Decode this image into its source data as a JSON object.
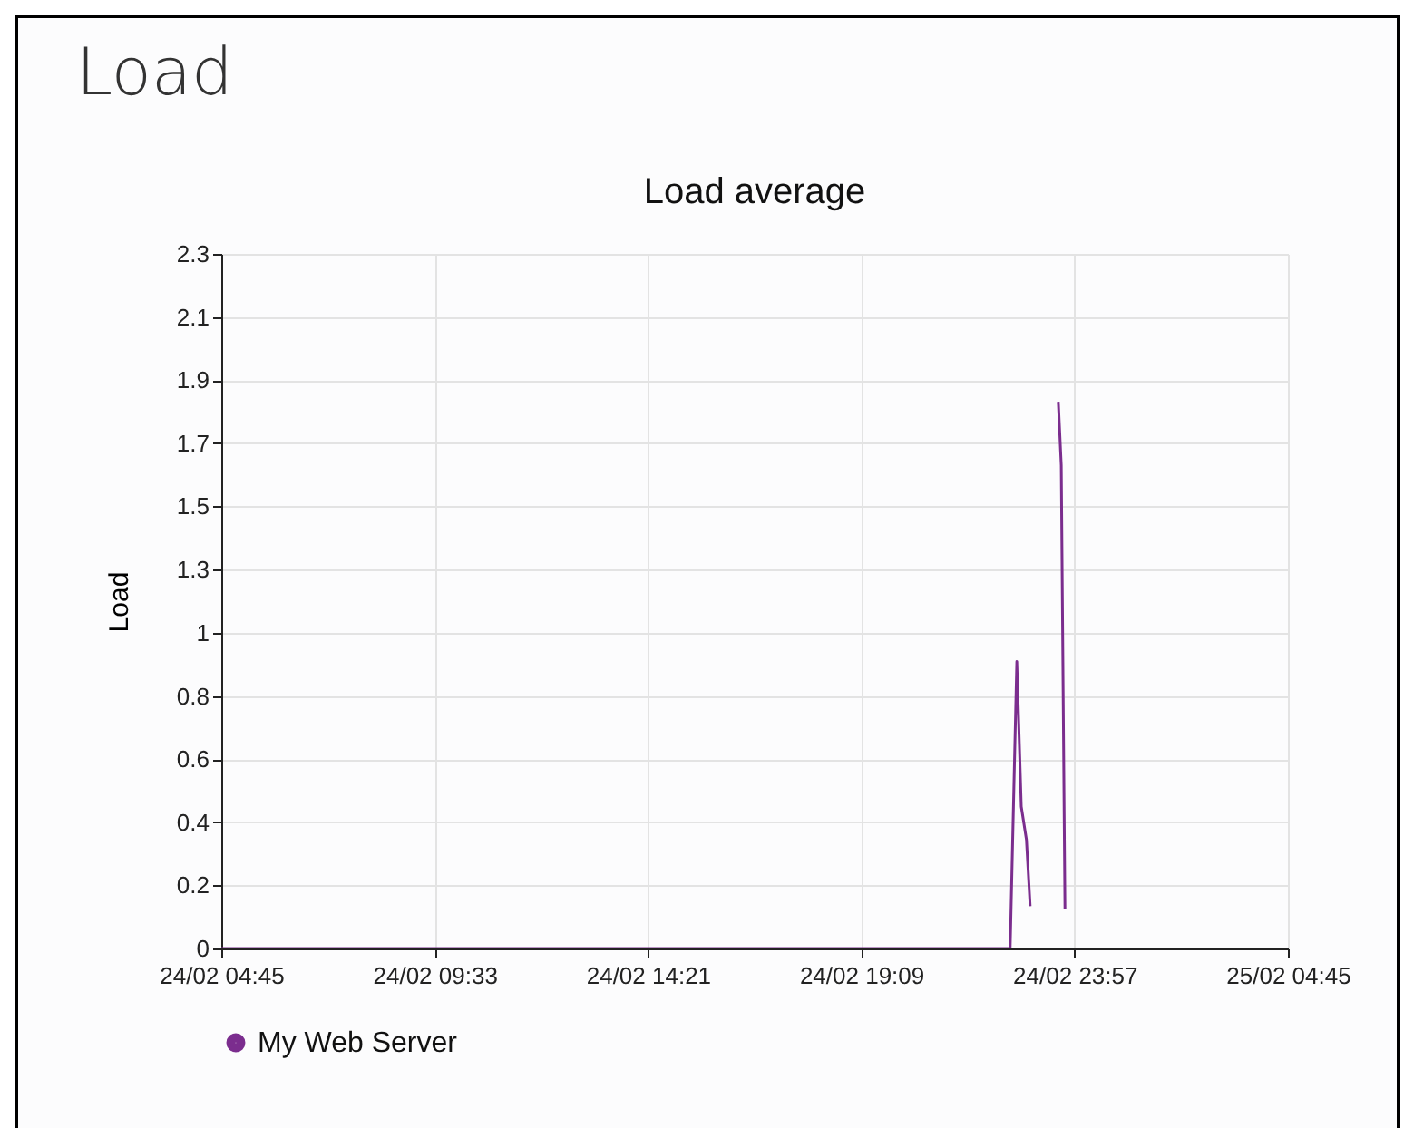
{
  "chart_data": {
    "type": "line",
    "title": "Load",
    "subtitle": "Load average",
    "ylabel": "Load",
    "x": [
      "--02-24T04:45",
      "--02-24T22:30",
      "--02-24T22:39",
      "--02-24T22:45",
      "--02-24T22:52",
      "--02-24T22:57",
      "--02-24T23:15",
      "--02-24T23:35",
      "--02-24T23:39",
      "--02-24T23:44"
    ],
    "series": [
      {
        "name": "My Web Server",
        "color": "#7b2d8e",
        "values": [
          0,
          0,
          0.95,
          0.47,
          0.36,
          0.14,
          null,
          1.81,
          1.6,
          0.13
        ]
      }
    ],
    "xlim": [
      "--02-24T04:45",
      "--02-25T04:45"
    ],
    "xticks": [
      {
        "value": "--02-24T04:45",
        "label": "24/02 04:45"
      },
      {
        "value": "--02-24T09:33",
        "label": "24/02 09:33"
      },
      {
        "value": "--02-24T14:21",
        "label": "24/02 14:21"
      },
      {
        "value": "--02-24T19:09",
        "label": "24/02 19:09"
      },
      {
        "value": "--02-24T23:57",
        "label": "24/02 23:57"
      },
      {
        "value": "--02-25T04:45",
        "label": "25/02 04:45"
      }
    ],
    "ylim": [
      0,
      2.3
    ],
    "yticks": [
      {
        "value": 0,
        "label": "0"
      },
      {
        "value": 0.209,
        "label": "0.2"
      },
      {
        "value": 0.418,
        "label": "0.4"
      },
      {
        "value": 0.627,
        "label": "0.6"
      },
      {
        "value": 0.836,
        "label": "0.8"
      },
      {
        "value": 1.045,
        "label": "1"
      },
      {
        "value": 1.255,
        "label": "1.3"
      },
      {
        "value": 1.464,
        "label": "1.5"
      },
      {
        "value": 1.673,
        "label": "1.7"
      },
      {
        "value": 1.882,
        "label": "1.9"
      },
      {
        "value": 2.091,
        "label": "2.1"
      },
      {
        "value": 2.3,
        "label": "2.3"
      }
    ],
    "grid": true,
    "legend": "bottom left",
    "marker": "none",
    "line_style": "solid"
  }
}
